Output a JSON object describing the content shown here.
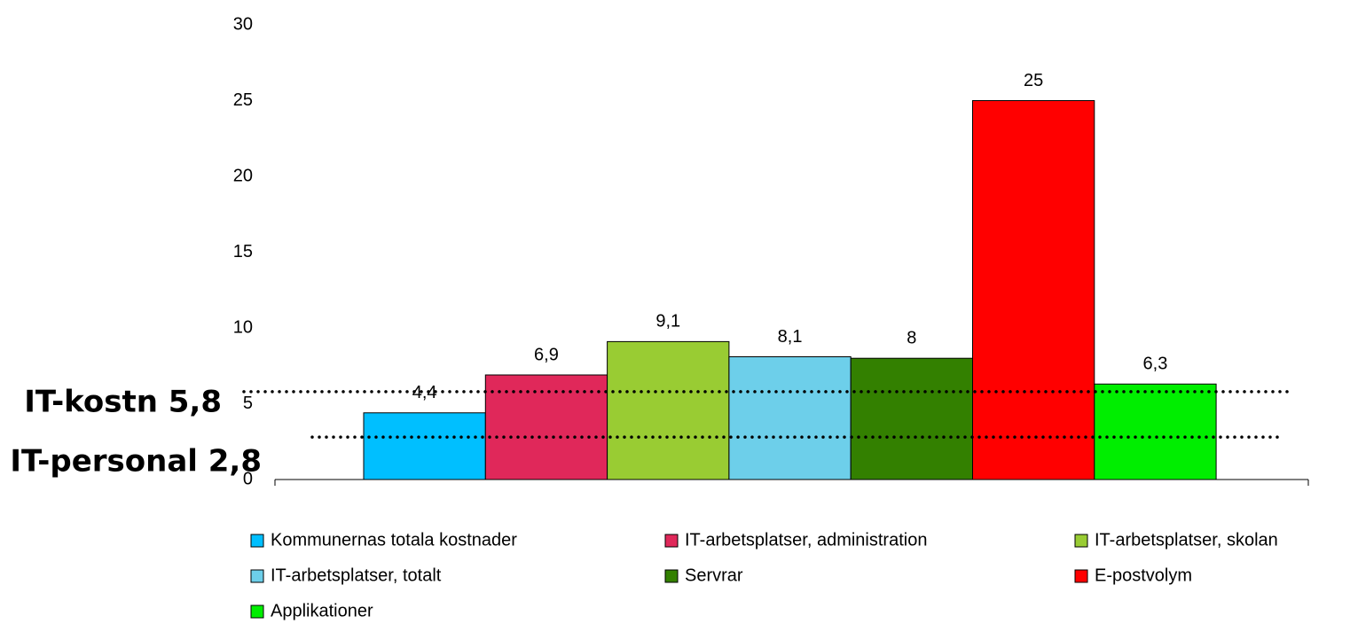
{
  "chart_data": {
    "type": "bar",
    "series": [
      {
        "name": "Kommunernas totala kostnader",
        "color": "#00bfff",
        "values": [
          4.4
        ],
        "value_labels": [
          "4,4"
        ]
      },
      {
        "name": "IT-arbetsplatser, administration",
        "color": "#e0285a",
        "values": [
          6.9
        ],
        "value_labels": [
          "6,9"
        ]
      },
      {
        "name": "IT-arbetsplatser, skolan",
        "color": "#99cc33",
        "values": [
          9.1
        ],
        "value_labels": [
          "9,1"
        ]
      },
      {
        "name": "IT-arbetsplatser, totalt",
        "color": "#6dcfea",
        "values": [
          8.1
        ],
        "value_labels": [
          "8,1"
        ]
      },
      {
        "name": "Servrar",
        "color": "#338000",
        "values": [
          8
        ],
        "value_labels": [
          "8"
        ]
      },
      {
        "name": "E-postvolym",
        "color": "#ff0000",
        "values": [
          25
        ],
        "value_labels": [
          "25"
        ]
      },
      {
        "name": "Applikationer",
        "color": "#00ee00",
        "values": [
          6.3
        ],
        "value_labels": [
          "6,3"
        ]
      }
    ],
    "ylim": [
      0,
      30
    ],
    "yticks": [
      0,
      5,
      10,
      15,
      20,
      25,
      30
    ],
    "annotations": [
      {
        "label": "IT-kostn 5,8",
        "value": 5.8
      },
      {
        "label": "IT-personal 2,8",
        "value": 2.8
      }
    ],
    "legend": "bottom"
  }
}
